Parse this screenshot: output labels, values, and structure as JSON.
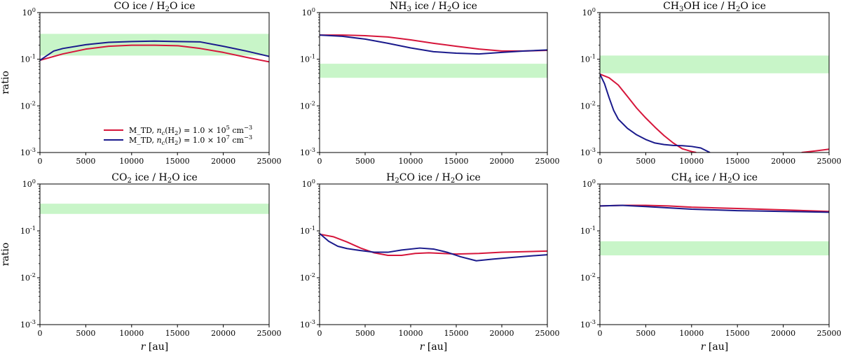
{
  "figure": {
    "ylabel": "ratio",
    "xlabel": "r [au]",
    "legend": {
      "placement": "lower-right of first panel",
      "entries": [
        {
          "series": "n1e5",
          "text": "M_TD, n_c(H_2) = 1.0 × 10^5 cm^-3",
          "color": "#d6163b"
        },
        {
          "series": "n1e7",
          "text": "M_TD, n_c(H_2) = 1.0 × 10^7 cm^-3",
          "color": "#1a1a8c"
        }
      ]
    }
  },
  "chart_data": [
    {
      "type": "line",
      "title": "CO ice / H2O ice",
      "xlabel": "",
      "ylabel": "ratio",
      "xlim": [
        0,
        25000
      ],
      "ylim": [
        0.001,
        1
      ],
      "yscale": "log",
      "xticks": [
        0,
        5000,
        10000,
        15000,
        20000,
        25000
      ],
      "yticks": [
        0.001,
        0.01,
        0.1,
        1
      ],
      "band": [
        0.12,
        0.35
      ],
      "band_color": "#c8f5c8",
      "series": [
        {
          "name": "M_TD, n_c(H2) = 1.0e5 cm^-3",
          "color": "#d6163b",
          "x": [
            0,
            2500,
            5000,
            7500,
            10000,
            12500,
            15000,
            17500,
            20000,
            22500,
            25000
          ],
          "y": [
            0.095,
            0.13,
            0.165,
            0.19,
            0.2,
            0.2,
            0.195,
            0.17,
            0.14,
            0.11,
            0.088
          ]
        },
        {
          "name": "M_TD, n_c(H2) = 1.0e7 cm^-3",
          "color": "#1a1a8c",
          "x": [
            0,
            1500,
            2500,
            5000,
            7500,
            10000,
            12500,
            15000,
            17500,
            20000,
            22500,
            25000
          ],
          "y": [
            0.095,
            0.15,
            0.17,
            0.205,
            0.23,
            0.24,
            0.245,
            0.24,
            0.235,
            0.19,
            0.15,
            0.115
          ]
        }
      ]
    },
    {
      "type": "line",
      "title": "NH3 ice / H2O ice",
      "xlabel": "",
      "ylabel": "",
      "xlim": [
        0,
        25000
      ],
      "ylim": [
        0.001,
        1
      ],
      "yscale": "log",
      "xticks": [
        0,
        5000,
        10000,
        15000,
        20000,
        25000
      ],
      "yticks": [
        0.001,
        0.01,
        0.1,
        1
      ],
      "band": [
        0.04,
        0.08
      ],
      "band_color": "#c8f5c8",
      "series": [
        {
          "name": "M_TD, n_c(H2) = 1.0e5 cm^-3",
          "color": "#d6163b",
          "x": [
            0,
            2500,
            5000,
            7500,
            10000,
            12500,
            15000,
            17500,
            20000,
            22500,
            25000
          ],
          "y": [
            0.33,
            0.33,
            0.32,
            0.3,
            0.26,
            0.22,
            0.19,
            0.165,
            0.15,
            0.15,
            0.155
          ]
        },
        {
          "name": "M_TD, n_c(H2) = 1.0e7 cm^-3",
          "color": "#1a1a8c",
          "x": [
            0,
            2500,
            5000,
            7500,
            10000,
            12500,
            15000,
            17500,
            20000,
            22500,
            25000
          ],
          "y": [
            0.33,
            0.31,
            0.27,
            0.22,
            0.175,
            0.145,
            0.135,
            0.13,
            0.14,
            0.15,
            0.158
          ]
        }
      ]
    },
    {
      "type": "line",
      "title": "CH3OH ice / H2O ice",
      "xlabel": "",
      "ylabel": "",
      "xlim": [
        0,
        25000
      ],
      "ylim": [
        0.001,
        1
      ],
      "yscale": "log",
      "xticks": [
        0,
        5000,
        10000,
        15000,
        20000,
        25000
      ],
      "yticks": [
        0.001,
        0.01,
        0.1,
        1
      ],
      "band": [
        0.05,
        0.12
      ],
      "band_color": "#c8f5c8",
      "series": [
        {
          "name": "M_TD, n_c(H2) = 1.0e5 cm^-3",
          "color": "#d6163b",
          "x": [
            0,
            1000,
            2000,
            3000,
            4000,
            5000,
            6000,
            7000,
            8000,
            9000,
            10000,
            10500
          ],
          "y": [
            0.048,
            0.04,
            0.028,
            0.016,
            0.009,
            0.0055,
            0.0035,
            0.0023,
            0.0016,
            0.0012,
            0.00105,
            0.001
          ]
        },
        {
          "name": "M_TD, n_c(H2) = 1.0e5 cm^-3 (tail)",
          "color": "#d6163b",
          "x": [
            22000,
            23500,
            25000
          ],
          "y": [
            0.001,
            0.00108,
            0.00118
          ]
        },
        {
          "name": "M_TD, n_c(H2) = 1.0e7 cm^-3",
          "color": "#1a1a8c",
          "x": [
            0,
            500,
            1000,
            1500,
            2000,
            3000,
            4000,
            5000,
            6000,
            7000,
            8000,
            9000,
            10000,
            11000,
            12000
          ],
          "y": [
            0.048,
            0.03,
            0.015,
            0.008,
            0.0052,
            0.0033,
            0.0024,
            0.0019,
            0.0016,
            0.00148,
            0.00142,
            0.0014,
            0.00135,
            0.00125,
            0.001
          ]
        }
      ]
    },
    {
      "type": "line",
      "title": "CO2 ice / H2O ice",
      "xlabel": "r [au]",
      "ylabel": "ratio",
      "xlim": [
        0,
        25000
      ],
      "ylim": [
        0.001,
        1
      ],
      "yscale": "log",
      "xticks": [
        0,
        5000,
        10000,
        15000,
        20000,
        25000
      ],
      "yticks": [
        0.001,
        0.01,
        0.1,
        1
      ],
      "band": [
        0.23,
        0.38
      ],
      "band_color": "#c8f5c8",
      "series": []
    },
    {
      "type": "line",
      "title": "H2CO ice / H2O ice",
      "xlabel": "r [au]",
      "ylabel": "",
      "xlim": [
        0,
        25000
      ],
      "ylim": [
        0.001,
        1
      ],
      "yscale": "log",
      "xticks": [
        0,
        5000,
        10000,
        15000,
        20000,
        25000
      ],
      "yticks": [
        0.001,
        0.01,
        0.1,
        1
      ],
      "band": null,
      "band_color": "#c8f5c8",
      "series": [
        {
          "name": "M_TD, n_c(H2) = 1.0e5 cm^-3",
          "color": "#d6163b",
          "x": [
            0,
            1500,
            3000,
            4500,
            6000,
            7500,
            9000,
            10500,
            12000,
            13500,
            15000,
            17500,
            20000,
            22500,
            25000
          ],
          "y": [
            0.085,
            0.075,
            0.058,
            0.043,
            0.034,
            0.03,
            0.03,
            0.033,
            0.034,
            0.033,
            0.032,
            0.033,
            0.035,
            0.036,
            0.037
          ]
        },
        {
          "name": "M_TD, n_c(H2) = 1.0e7 cm^-3",
          "color": "#1a1a8c",
          "x": [
            0,
            1000,
            2000,
            3000,
            4500,
            6000,
            7500,
            9000,
            11000,
            12500,
            14000,
            15500,
            17200,
            19000,
            21000,
            23000,
            25000
          ],
          "y": [
            0.088,
            0.06,
            0.047,
            0.042,
            0.038,
            0.035,
            0.035,
            0.039,
            0.043,
            0.041,
            0.035,
            0.028,
            0.023,
            0.025,
            0.027,
            0.029,
            0.031
          ]
        }
      ]
    },
    {
      "type": "line",
      "title": "CH4 ice / H2O ice",
      "xlabel": "r [au]",
      "ylabel": "",
      "xlim": [
        0,
        25000
      ],
      "ylim": [
        0.001,
        1
      ],
      "yscale": "log",
      "xticks": [
        0,
        5000,
        10000,
        15000,
        20000,
        25000
      ],
      "yticks": [
        0.001,
        0.01,
        0.1,
        1
      ],
      "band": [
        0.03,
        0.06
      ],
      "band_color": "#c8f5c8",
      "series": [
        {
          "name": "M_TD, n_c(H2) = 1.0e5 cm^-3",
          "color": "#d6163b",
          "x": [
            0,
            2500,
            5000,
            7500,
            10000,
            12500,
            15000,
            17500,
            20000,
            22500,
            25000
          ],
          "y": [
            0.34,
            0.35,
            0.35,
            0.34,
            0.32,
            0.31,
            0.3,
            0.29,
            0.28,
            0.27,
            0.26
          ]
        },
        {
          "name": "M_TD, n_c(H2) = 1.0e7 cm^-3",
          "color": "#1a1a8c",
          "x": [
            0,
            2500,
            5000,
            7500,
            10000,
            12500,
            15000,
            17500,
            20000,
            22500,
            25000
          ],
          "y": [
            0.34,
            0.35,
            0.33,
            0.31,
            0.29,
            0.28,
            0.27,
            0.265,
            0.26,
            0.255,
            0.25
          ]
        }
      ]
    }
  ]
}
